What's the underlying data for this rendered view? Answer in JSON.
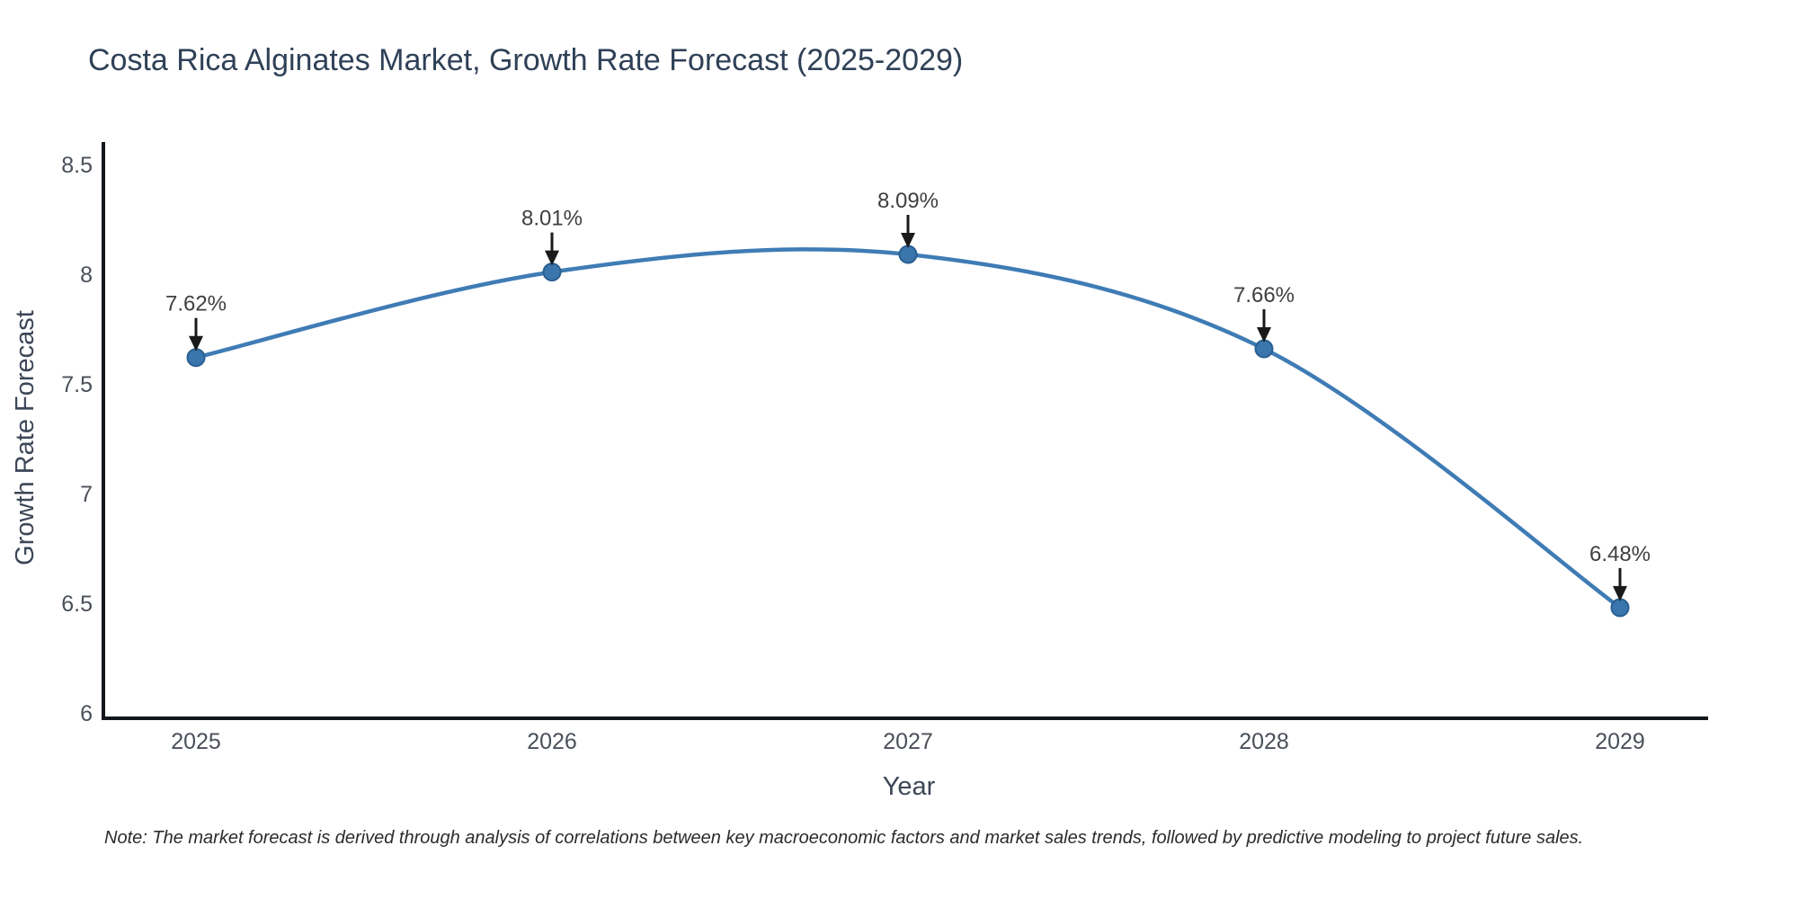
{
  "chart_data": {
    "type": "line",
    "title": "Costa Rica Alginates Market, Growth Rate Forecast (2025-2029)",
    "xlabel": "Year",
    "ylabel": "Growth Rate Forecast",
    "categories": [
      "2025",
      "2026",
      "2027",
      "2028",
      "2029"
    ],
    "values": [
      7.62,
      8.01,
      8.09,
      7.66,
      6.48
    ],
    "point_labels": [
      "7.62%",
      "8.01%",
      "8.09%",
      "7.66%",
      "6.48%"
    ],
    "yticks": [
      6,
      6.5,
      7,
      7.5,
      8,
      8.5
    ],
    "ytick_labels": [
      "6",
      "6.5",
      "7",
      "7.5",
      "8",
      "8.5"
    ],
    "ylim": [
      6,
      8.5
    ],
    "grid": false,
    "legend": "none",
    "line_shape": "spline",
    "line_color": "#3f7cb5",
    "marker_color": "#3a76ad",
    "marker_edge_color": "#2a5f91",
    "axis_color": "#14181d",
    "annotation_arrow_color": "#1a1a1a"
  },
  "note": "Note: The market forecast is derived through analysis of correlations between key macroeconomic factors and market sales trends, followed by predictive modeling to project future sales."
}
